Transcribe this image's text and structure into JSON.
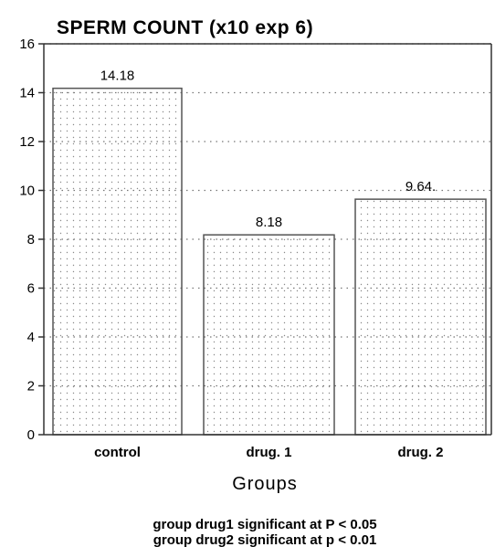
{
  "chart_data": {
    "type": "bar",
    "title": "SPERM COUNT (x10 exp 6)",
    "xlabel": "Groups",
    "ylabel": "",
    "ylim": [
      0,
      16
    ],
    "yticks": [
      0,
      2,
      4,
      6,
      8,
      10,
      12,
      14,
      16
    ],
    "categories": [
      "control",
      "drug. 1",
      "drug. 2"
    ],
    "values": [
      14.18,
      8.18,
      9.64
    ],
    "value_labels": [
      "14.18",
      "8.18",
      "9.64."
    ],
    "grid": "dotted",
    "bar_fill": "stippled",
    "notes": [
      "group drug1  significant at P < 0.05",
      "group drug2 significant at p < 0.01"
    ]
  },
  "colors": {
    "axis": "#333333",
    "bar_edge": "#555555",
    "dots": "#8a8a8a",
    "text": "#111111"
  }
}
